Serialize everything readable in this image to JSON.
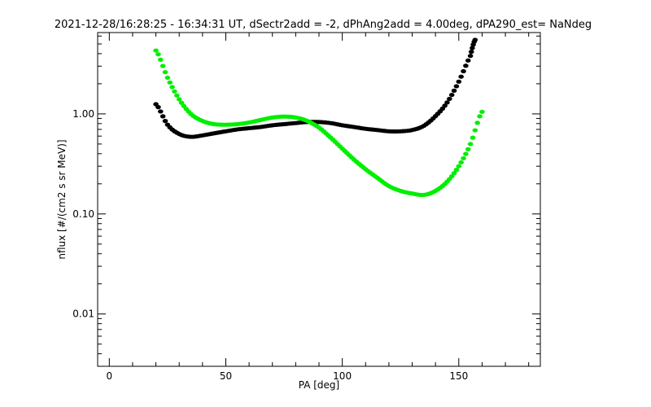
{
  "chart_data": {
    "type": "scatter",
    "title": "2021-12-28/16:28:25 - 16:34:31 UT, dSectr2add = -2, dPhAng2add = 4.00deg, dPA290_est=   NaNdeg",
    "xlabel": "PA [deg]",
    "ylabel": "nflux [#/(cm2 s sr MeV)]",
    "xlim": [
      -5,
      185
    ],
    "ylim": [
      0.003,
      6.5
    ],
    "yscale": "log",
    "grid": false,
    "x_ticks": [
      {
        "value": 0,
        "label": "0"
      },
      {
        "value": 50,
        "label": "50"
      },
      {
        "value": 100,
        "label": "100"
      },
      {
        "value": 150,
        "label": "150"
      }
    ],
    "y_ticks": [
      {
        "value": 0.01,
        "label": "0.01"
      },
      {
        "value": 0.1,
        "label": "0.10"
      },
      {
        "value": 1,
        "label": "1.00"
      }
    ],
    "series": [
      {
        "color": "#000000",
        "x": [
          20,
          25,
          30,
          35,
          40,
          45,
          50,
          55,
          60,
          65,
          70,
          75,
          80,
          85,
          90,
          95,
          100,
          105,
          110,
          115,
          120,
          125,
          130,
          135,
          140,
          145,
          150,
          155,
          157
        ],
        "values": [
          1.25,
          0.78,
          0.63,
          0.59,
          0.61,
          0.64,
          0.67,
          0.7,
          0.72,
          0.74,
          0.77,
          0.79,
          0.81,
          0.83,
          0.83,
          0.81,
          0.77,
          0.74,
          0.71,
          0.69,
          0.67,
          0.67,
          0.69,
          0.76,
          0.95,
          1.3,
          2.1,
          3.8,
          5.5
        ]
      },
      {
        "color": "#00ee00",
        "x": [
          20,
          25,
          30,
          35,
          40,
          45,
          50,
          55,
          60,
          65,
          70,
          75,
          80,
          85,
          90,
          95,
          100,
          105,
          110,
          115,
          120,
          125,
          130,
          135,
          140,
          145,
          150,
          155,
          160
        ],
        "values": [
          4.3,
          2.3,
          1.4,
          1.0,
          0.85,
          0.79,
          0.78,
          0.79,
          0.82,
          0.87,
          0.92,
          0.94,
          0.92,
          0.85,
          0.73,
          0.58,
          0.45,
          0.35,
          0.28,
          0.23,
          0.19,
          0.17,
          0.16,
          0.155,
          0.17,
          0.21,
          0.3,
          0.5,
          1.05
        ]
      }
    ]
  }
}
